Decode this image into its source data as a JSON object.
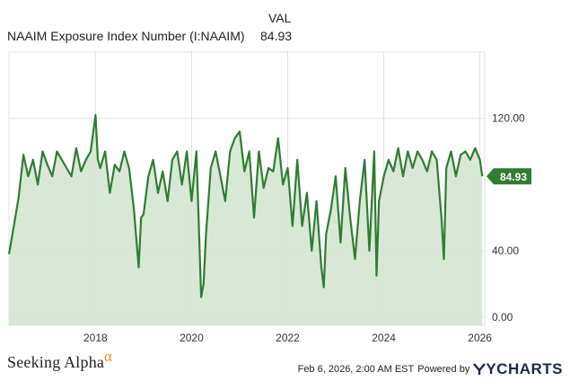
{
  "header": {
    "column_label": "VAL",
    "series_name": "NAAIM Exposure Index Number (I:NAAIM)",
    "series_value": "84.93"
  },
  "footer": {
    "brand": "Seeking Alpha",
    "brand_mark": "α",
    "timestamp": "Feb 6, 2026, 2:00 AM EST",
    "powered_by": "Powered by",
    "logo": "YCHARTS"
  },
  "colors": {
    "line": "#2e7d32",
    "fill": "#d5e6d2",
    "badge": "#2e7d32",
    "grid": "#e0e0e0"
  },
  "chart_data": {
    "type": "area",
    "title": "NAAIM Exposure Index Number (I:NAAIM)",
    "xlabel": "",
    "ylabel": "",
    "xlim": [
      2016.2,
      2026.1
    ],
    "ylim": [
      -5,
      160
    ],
    "x_ticks": [
      2018,
      2020,
      2022,
      2024,
      2026
    ],
    "x_tick_labels": [
      "2018",
      "2020",
      "2022",
      "2024",
      "2026"
    ],
    "y_ticks": [
      0,
      40,
      120
    ],
    "y_tick_labels": [
      "0.00",
      "40.00",
      "120.00"
    ],
    "last_value": 84.93,
    "last_value_label": "84.93",
    "series": [
      {
        "name": "NAAIM Exposure Index Number (I:NAAIM)",
        "x": [
          2016.2,
          2016.3,
          2016.4,
          2016.5,
          2016.6,
          2016.7,
          2016.8,
          2016.9,
          2017.0,
          2017.1,
          2017.2,
          2017.3,
          2017.4,
          2017.5,
          2017.6,
          2017.7,
          2017.8,
          2017.9,
          2018.0,
          2018.05,
          2018.1,
          2018.2,
          2018.3,
          2018.4,
          2018.5,
          2018.6,
          2018.7,
          2018.8,
          2018.9,
          2018.95,
          2019.0,
          2019.1,
          2019.2,
          2019.3,
          2019.4,
          2019.5,
          2019.6,
          2019.7,
          2019.8,
          2019.9,
          2020.0,
          2020.1,
          2020.2,
          2020.25,
          2020.3,
          2020.4,
          2020.5,
          2020.6,
          2020.7,
          2020.8,
          2020.9,
          2021.0,
          2021.1,
          2021.2,
          2021.3,
          2021.4,
          2021.5,
          2021.6,
          2021.7,
          2021.8,
          2021.9,
          2022.0,
          2022.1,
          2022.2,
          2022.3,
          2022.4,
          2022.5,
          2022.6,
          2022.7,
          2022.75,
          2022.8,
          2022.9,
          2023.0,
          2023.1,
          2023.2,
          2023.3,
          2023.4,
          2023.5,
          2023.6,
          2023.7,
          2023.8,
          2023.85,
          2023.9,
          2024.0,
          2024.1,
          2024.2,
          2024.3,
          2024.4,
          2024.5,
          2024.6,
          2024.7,
          2024.8,
          2024.9,
          2025.0,
          2025.1,
          2025.2,
          2025.25,
          2025.3,
          2025.4,
          2025.5,
          2025.6,
          2025.7,
          2025.8,
          2025.9,
          2026.0,
          2026.05
        ],
        "values": [
          38,
          55,
          72,
          98,
          85,
          95,
          80,
          100,
          92,
          85,
          100,
          95,
          90,
          85,
          102,
          88,
          95,
          100,
          122,
          95,
          90,
          100,
          75,
          92,
          88,
          100,
          90,
          65,
          30,
          60,
          62,
          85,
          95,
          75,
          88,
          70,
          95,
          100,
          80,
          100,
          70,
          100,
          12,
          20,
          50,
          90,
          100,
          85,
          70,
          100,
          108,
          112,
          88,
          100,
          60,
          100,
          78,
          90,
          88,
          108,
          80,
          90,
          55,
          95,
          55,
          75,
          40,
          70,
          30,
          18,
          50,
          65,
          85,
          45,
          90,
          60,
          35,
          70,
          95,
          40,
          100,
          25,
          70,
          85,
          95,
          88,
          102,
          85,
          100,
          90,
          100,
          95,
          88,
          100,
          95,
          60,
          35,
          90,
          100,
          85,
          98,
          100,
          95,
          102,
          95,
          85
        ]
      }
    ]
  }
}
